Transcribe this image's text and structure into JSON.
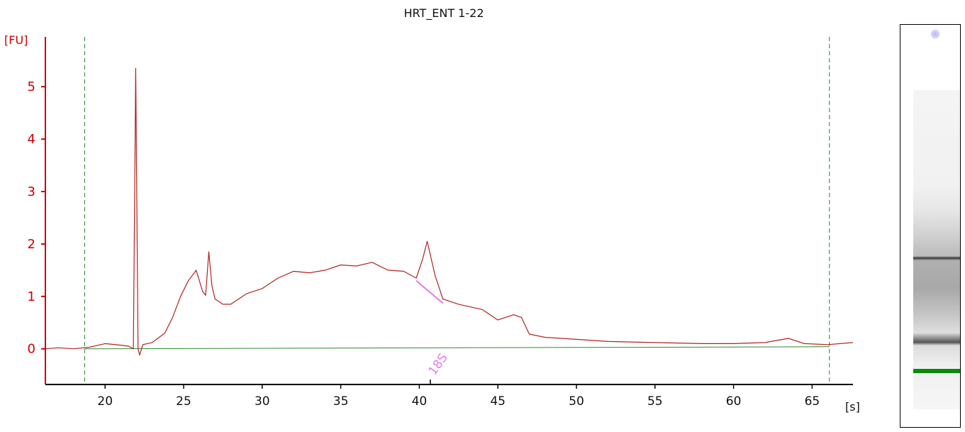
{
  "chart_data": {
    "type": "line",
    "title": "HRT_ENT 1-22",
    "ylabel": "[FU]",
    "xlabel": "[s]",
    "xlim": [
      16.2,
      67.6
    ],
    "ylim": [
      -0.68,
      5.95
    ],
    "xticks": [
      "20",
      "25",
      "30",
      "35",
      "40",
      "45",
      "50",
      "55",
      "60",
      "65"
    ],
    "yticks": [
      "0",
      "1",
      "2",
      "3",
      "4",
      "5"
    ],
    "grid": false,
    "series": [
      {
        "color": "#b22222",
        "x": [
          16.2,
          17.0,
          18.0,
          19.0,
          20.0,
          21.0,
          21.5,
          21.8,
          21.95,
          22.1,
          22.2,
          22.4,
          23.0,
          23.8,
          24.3,
          24.8,
          25.3,
          25.8,
          26.2,
          26.4,
          26.6,
          26.8,
          27.0,
          27.5,
          28.0,
          29.0,
          30.0,
          31.0,
          32.0,
          33.0,
          34.0,
          35.0,
          36.0,
          37.0,
          38.0,
          39.0,
          39.8,
          40.2,
          40.5,
          41.0,
          41.5,
          42.5,
          44.0,
          45.0,
          46.0,
          46.5,
          47.0,
          48.0,
          50.0,
          52.0,
          55.0,
          58.0,
          60.0,
          62.0,
          63.5,
          64.5,
          66.0,
          67.6
        ],
        "y": [
          0.0,
          0.02,
          0.0,
          0.03,
          0.1,
          0.07,
          0.05,
          0.0,
          5.35,
          0.0,
          -0.12,
          0.08,
          0.12,
          0.3,
          0.6,
          1.0,
          1.3,
          1.5,
          1.1,
          1.02,
          1.85,
          1.2,
          0.95,
          0.85,
          0.85,
          1.05,
          1.15,
          1.35,
          1.48,
          1.45,
          1.5,
          1.6,
          1.58,
          1.65,
          1.5,
          1.48,
          1.35,
          1.7,
          2.05,
          1.4,
          0.95,
          0.85,
          0.75,
          0.55,
          0.65,
          0.6,
          0.28,
          0.22,
          0.18,
          0.14,
          0.12,
          0.1,
          0.1,
          0.12,
          0.2,
          0.1,
          0.08,
          0.12
        ]
      }
    ],
    "baseline": {
      "color": "#2e8b2e",
      "x": [
        18.7,
        66.1
      ],
      "y": [
        0.0,
        0.04
      ]
    },
    "region_markers": {
      "color": "#2e7d32",
      "x": [
        18.7,
        66.1
      ]
    },
    "peak_marker": {
      "label": "18S",
      "x": 40.7,
      "line_from": [
        39.8,
        1.3
      ],
      "line_to": [
        41.5,
        0.87
      ],
      "color": "#e878e8"
    },
    "axis_color": "#cc0000"
  }
}
